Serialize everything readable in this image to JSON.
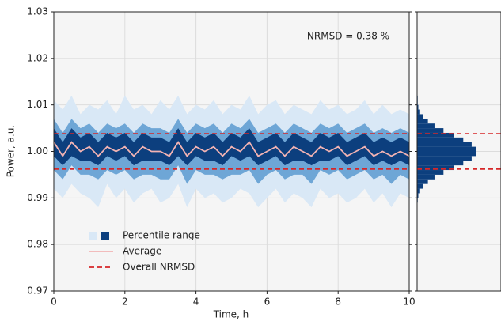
{
  "chart_data": {
    "type": "band-line",
    "x_label": "Time, h",
    "y_label": "Power, a.u.",
    "annotation": "NRMSD = 0.38 %",
    "xlim": [
      0,
      10
    ],
    "xticks": [
      0,
      2,
      4,
      6,
      8,
      10
    ],
    "ylim": [
      0.97,
      1.03
    ],
    "yticks": [
      0.97,
      0.98,
      0.99,
      {
        "value": 1,
        "label": "1.00"
      },
      1.01,
      1.02,
      1.03
    ],
    "grid": true,
    "x": [
      0,
      0.25,
      0.5,
      0.75,
      1,
      1.25,
      1.5,
      1.75,
      2,
      2.25,
      2.5,
      2.75,
      3,
      3.25,
      3.5,
      3.75,
      4,
      4.25,
      4.5,
      4.75,
      5,
      5.25,
      5.5,
      5.75,
      6,
      6.25,
      6.5,
      6.75,
      7,
      7.25,
      7.5,
      7.75,
      8,
      8.25,
      8.5,
      8.75,
      9,
      9.25,
      9.5,
      9.75,
      10
    ],
    "band_legend": "Percentile range",
    "bands": [
      {
        "color": "#d9e8f6",
        "lower": [
          0.992,
          0.99,
          0.993,
          0.991,
          0.99,
          0.988,
          0.993,
          0.99,
          0.992,
          0.989,
          0.991,
          0.992,
          0.989,
          0.99,
          0.993,
          0.988,
          0.992,
          0.99,
          0.991,
          0.989,
          0.99,
          0.992,
          0.991,
          0.988,
          0.99,
          0.992,
          0.989,
          0.991,
          0.99,
          0.988,
          0.992,
          0.99,
          0.991,
          0.989,
          0.99,
          0.992,
          0.989,
          0.991,
          0.988,
          0.991,
          0.99
        ],
        "upper": [
          1.011,
          1.009,
          1.012,
          1.008,
          1.01,
          1.009,
          1.011,
          1.008,
          1.012,
          1.009,
          1.01,
          1.008,
          1.011,
          1.009,
          1.012,
          1.008,
          1.01,
          1.009,
          1.011,
          1.008,
          1.01,
          1.009,
          1.012,
          1.008,
          1.01,
          1.011,
          1.008,
          1.01,
          1.009,
          1.008,
          1.011,
          1.009,
          1.01,
          1.008,
          1.009,
          1.011,
          1.008,
          1.01,
          1.008,
          1.009,
          1.008
        ]
      },
      {
        "color": "#6ea6d6",
        "lower": [
          0.996,
          0.994,
          0.997,
          0.995,
          0.995,
          0.994,
          0.996,
          0.995,
          0.996,
          0.994,
          0.995,
          0.995,
          0.994,
          0.994,
          0.997,
          0.993,
          0.996,
          0.995,
          0.995,
          0.994,
          0.995,
          0.995,
          0.996,
          0.993,
          0.995,
          0.996,
          0.994,
          0.995,
          0.995,
          0.993,
          0.996,
          0.995,
          0.996,
          0.994,
          0.995,
          0.996,
          0.994,
          0.995,
          0.993,
          0.995,
          0.994
        ],
        "upper": [
          1.007,
          1.004,
          1.007,
          1.005,
          1.006,
          1.004,
          1.006,
          1.005,
          1.006,
          1.004,
          1.006,
          1.005,
          1.005,
          1.004,
          1.007,
          1.004,
          1.006,
          1.005,
          1.006,
          1.004,
          1.006,
          1.005,
          1.007,
          1.004,
          1.005,
          1.006,
          1.004,
          1.006,
          1.005,
          1.004,
          1.006,
          1.005,
          1.006,
          1.004,
          1.005,
          1.006,
          1.004,
          1.005,
          1.004,
          1.005,
          1.004
        ]
      },
      {
        "color": "#0c3f7e",
        "lower": [
          0.999,
          0.997,
          0.999,
          0.998,
          0.998,
          0.997,
          0.999,
          0.998,
          0.999,
          0.997,
          0.998,
          0.998,
          0.998,
          0.997,
          0.999,
          0.997,
          0.999,
          0.998,
          0.998,
          0.997,
          0.999,
          0.998,
          0.999,
          0.997,
          0.998,
          0.999,
          0.997,
          0.998,
          0.998,
          0.997,
          0.998,
          0.998,
          0.999,
          0.997,
          0.998,
          0.999,
          0.997,
          0.998,
          0.997,
          0.998,
          0.997
        ],
        "upper": [
          1.005,
          1.002,
          1.005,
          1.003,
          1.004,
          1.002,
          1.004,
          1.003,
          1.004,
          1.002,
          1.004,
          1.003,
          1.003,
          1.002,
          1.005,
          1.002,
          1.004,
          1.003,
          1.004,
          1.002,
          1.004,
          1.003,
          1.005,
          1.002,
          1.003,
          1.004,
          1.002,
          1.004,
          1.003,
          1.002,
          1.004,
          1.003,
          1.004,
          1.002,
          1.003,
          1.004,
          1.002,
          1.003,
          1.002,
          1.003,
          1.002
        ]
      }
    ],
    "series": [
      {
        "name": "Average",
        "color": "#f2b3b3",
        "values": [
          1.002,
          0.999,
          1.002,
          1.0,
          1.001,
          0.999,
          1.001,
          1.0,
          1.001,
          0.999,
          1.001,
          1.0,
          1.0,
          0.999,
          1.002,
          0.999,
          1.001,
          1.0,
          1.001,
          0.999,
          1.001,
          1.0,
          1.002,
          0.999,
          1.0,
          1.001,
          0.999,
          1.001,
          1.0,
          0.999,
          1.001,
          1.0,
          1.001,
          0.999,
          1.0,
          1.001,
          0.999,
          1.0,
          0.999,
          1.0,
          0.999
        ]
      }
    ],
    "reference_lines": {
      "name": "Overall NRMSD",
      "color": "#d62728",
      "values": [
        0.9962,
        1.0038
      ]
    },
    "histogram": {
      "color": "#0c3f7e",
      "xlim": [
        0,
        140
      ],
      "bins": [
        0.988,
        0.989,
        0.99,
        0.991,
        0.992,
        0.993,
        0.994,
        0.995,
        0.996,
        0.997,
        0.998,
        0.999,
        1.0,
        1.001,
        1.002,
        1.003,
        1.004,
        1.005,
        1.006,
        1.007,
        1.008,
        1.009,
        1.01,
        1.011,
        1.012,
        1.013
      ],
      "counts": [
        0,
        1,
        2,
        5,
        10,
        18,
        29,
        44,
        61,
        77,
        91,
        99,
        99,
        91,
        77,
        61,
        44,
        29,
        18,
        10,
        5,
        2,
        1,
        1,
        0
      ]
    }
  }
}
